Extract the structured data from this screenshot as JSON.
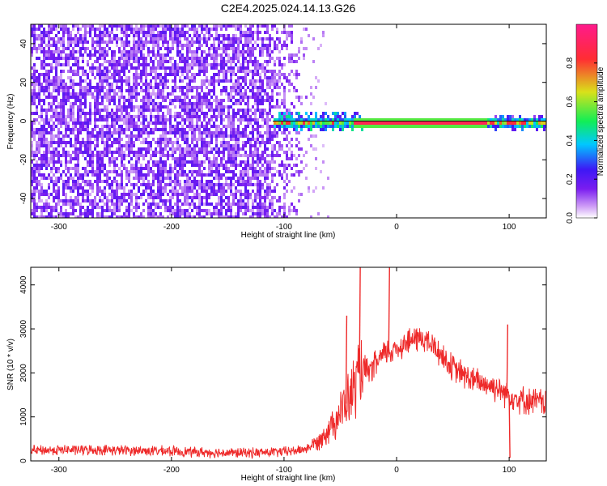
{
  "title": "C2E4.2025.024.14.13.G26",
  "colors": {
    "snr_line": "#ee2a2a",
    "colormap": [
      "#ffffff",
      "#ce9cf6",
      "#7a1df0",
      "#3d18f5",
      "#00c8ff",
      "#12ee55",
      "#d9e11a",
      "#ff2d33",
      "#ff1a8c"
    ]
  },
  "chart_data": [
    {
      "type": "heatmap",
      "xlabel": "Height of straight line (km)",
      "ylabel": "Frequency (Hz)",
      "xlim": [
        -325,
        133
      ],
      "ylim": [
        -50,
        50
      ],
      "x_ticks": [
        -300,
        -200,
        -100,
        0,
        100
      ],
      "y_ticks": [
        -40,
        -20,
        0,
        20,
        40
      ],
      "grid": false,
      "colorbar": {
        "label": "Normalized spectral amplitude",
        "range": [
          0,
          1
        ],
        "ticks": [
          0.0,
          0.2,
          0.4,
          0.6,
          0.8
        ]
      },
      "description_regions": [
        {
          "x_range": [
            -325,
            -80
          ],
          "y_range": [
            -50,
            50
          ],
          "amplitude": 0.15,
          "pattern": "broadband noise"
        },
        {
          "x_range": [
            -110,
            133
          ],
          "y_range": [
            -2,
            2
          ],
          "amplitude": 0.9,
          "pattern": "narrow line at 0 Hz"
        }
      ]
    },
    {
      "type": "line",
      "xlabel": "Height of straight line (km)",
      "ylabel": "SNR (10 * v/v)",
      "xlim": [
        -325,
        133
      ],
      "ylim": [
        0,
        4400
      ],
      "x_ticks": [
        -300,
        -200,
        -100,
        0,
        100
      ],
      "y_ticks": [
        0,
        1000,
        2000,
        3000,
        4000
      ],
      "grid": false,
      "series": [
        {
          "x": [
            -325,
            -300,
            -280,
            -260,
            -240,
            -220,
            -200,
            -180,
            -160,
            -140,
            -120,
            -100,
            -90,
            -80,
            -70,
            -60,
            -50,
            -40,
            -35,
            -30,
            -25,
            -20,
            -15,
            -10,
            -5,
            0,
            5,
            10,
            15,
            20,
            25,
            30,
            35,
            40,
            45,
            50,
            60,
            70,
            80,
            90,
            100,
            110,
            120,
            133
          ],
          "values": [
            230,
            250,
            250,
            250,
            240,
            230,
            220,
            200,
            190,
            180,
            190,
            210,
            230,
            280,
            430,
            750,
            1100,
            1500,
            1900,
            2100,
            2000,
            2150,
            2300,
            2450,
            2500,
            2550,
            2650,
            2700,
            2750,
            2800,
            2750,
            2650,
            2550,
            2400,
            2250,
            2100,
            1950,
            1800,
            1750,
            1650,
            1500,
            1400,
            1350,
            1350
          ]
        }
      ],
      "spikes": [
        {
          "x": -33,
          "value": 4400
        },
        {
          "x": -7,
          "value": 4400
        },
        {
          "x": -45,
          "value": 3300
        },
        {
          "x": 98,
          "value": 3100
        },
        {
          "x": 100,
          "value": 70
        }
      ]
    }
  ]
}
